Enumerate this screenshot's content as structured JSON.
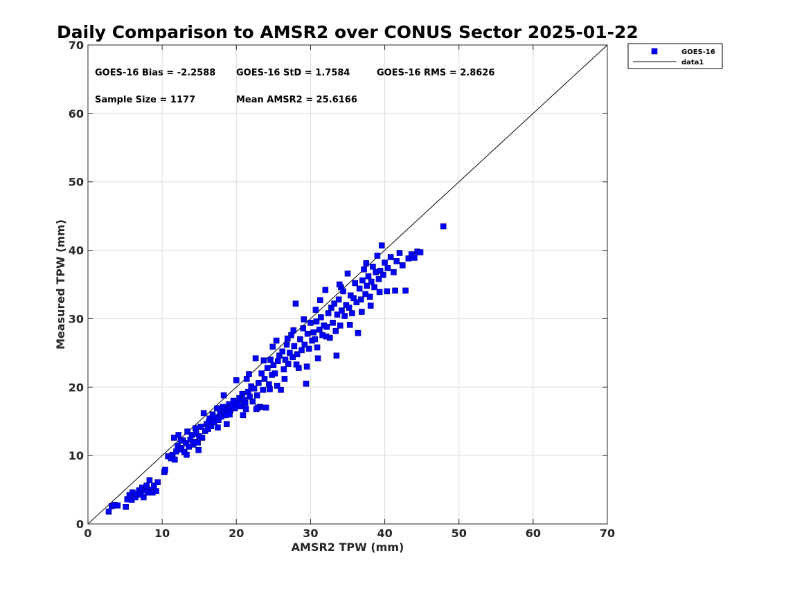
{
  "chart_data": {
    "type": "scatter",
    "title": "Daily Comparison to AMSR2 over CONUS Sector 2025-01-22",
    "xlabel": "AMSR2 TPW (mm)",
    "ylabel": "Measured TPW (mm)",
    "xlim": [
      0,
      70
    ],
    "ylim": [
      0,
      70
    ],
    "xticks": [
      "0",
      "10",
      "20",
      "30",
      "40",
      "50",
      "60",
      "70"
    ],
    "yticks": [
      "0",
      "10",
      "20",
      "30",
      "40",
      "50",
      "60",
      "70"
    ],
    "grid": true,
    "legend_position": "outside top-right",
    "stats": {
      "bias": "GOES-16 Bias = -2.2588",
      "std": "GOES-16 StD = 1.7584",
      "rms": "GOES-16 RMS = 2.8626",
      "sample_size": "Sample Size = 1177",
      "mean": "Mean AMSR2 = 25.6166"
    },
    "series": [
      {
        "name": "GOES-16",
        "marker": "square",
        "color": "#0000ff",
        "edge_color": "#000080",
        "points": [
          [
            2.8,
            1.8
          ],
          [
            3.2,
            2.6
          ],
          [
            3.6,
            2.8
          ],
          [
            4.0,
            2.7
          ],
          [
            5.1,
            2.5
          ],
          [
            5.3,
            3.6
          ],
          [
            5.6,
            4.2
          ],
          [
            5.9,
            3.5
          ],
          [
            6.0,
            4.6
          ],
          [
            6.4,
            3.9
          ],
          [
            6.6,
            4.4
          ],
          [
            6.9,
            4.9
          ],
          [
            7.1,
            4.3
          ],
          [
            7.3,
            5.3
          ],
          [
            7.5,
            3.9
          ],
          [
            7.7,
            4.9
          ],
          [
            7.9,
            5.6
          ],
          [
            8.1,
            4.6
          ],
          [
            8.3,
            6.4
          ],
          [
            8.5,
            5.0
          ],
          [
            8.7,
            4.6
          ],
          [
            8.9,
            5.6
          ],
          [
            9.2,
            4.8
          ],
          [
            9.4,
            6.1
          ],
          [
            10.3,
            7.6
          ],
          [
            10.4,
            7.9
          ],
          [
            10.8,
            9.9
          ],
          [
            11.2,
            9.6
          ],
          [
            11.4,
            10.1
          ],
          [
            11.6,
            12.6
          ],
          [
            11.7,
            9.4
          ],
          [
            11.9,
            10.6
          ],
          [
            12.1,
            11.4
          ],
          [
            12.2,
            13.0
          ],
          [
            12.4,
            11.1
          ],
          [
            12.6,
            10.9
          ],
          [
            12.8,
            12.2
          ],
          [
            13.0,
            10.5
          ],
          [
            13.2,
            11.8
          ],
          [
            13.4,
            13.5
          ],
          [
            13.6,
            11.3
          ],
          [
            13.8,
            12.3
          ],
          [
            14.0,
            13.0
          ],
          [
            14.2,
            11.6
          ],
          [
            14.4,
            12.0
          ],
          [
            14.6,
            13.2
          ],
          [
            14.8,
            11.9
          ],
          [
            15.0,
            12.8
          ],
          [
            15.2,
            14.2
          ],
          [
            15.4,
            12.6
          ],
          [
            15.6,
            16.2
          ],
          [
            15.8,
            13.6
          ],
          [
            16.0,
            14.6
          ],
          [
            16.2,
            13.9
          ],
          [
            16.4,
            15.4
          ],
          [
            16.6,
            14.3
          ],
          [
            16.8,
            16.0
          ],
          [
            17.0,
            14.9
          ],
          [
            17.2,
            15.6
          ],
          [
            17.4,
            16.9
          ],
          [
            17.6,
            15.2
          ],
          [
            17.8,
            16.2
          ],
          [
            18.0,
            15.7
          ],
          [
            18.2,
            17.1
          ],
          [
            18.4,
            16.3
          ],
          [
            18.6,
            15.9
          ],
          [
            18.8,
            16.8
          ],
          [
            19.0,
            17.5
          ],
          [
            19.2,
            16.6
          ],
          [
            19.4,
            17.2
          ],
          [
            19.6,
            18.0
          ],
          [
            19.8,
            16.9
          ],
          [
            20.0,
            21.0
          ],
          [
            20.2,
            17.6
          ],
          [
            20.4,
            18.4
          ],
          [
            20.6,
            17.2
          ],
          [
            20.8,
            19.0
          ],
          [
            21.0,
            18.1
          ],
          [
            21.2,
            17.7
          ],
          [
            21.4,
            21.2
          ],
          [
            21.6,
            19.3
          ],
          [
            21.8,
            18.6
          ],
          [
            22.0,
            20.1
          ],
          [
            22.2,
            17.9
          ],
          [
            22.4,
            19.8
          ],
          [
            22.6,
            24.2
          ],
          [
            22.8,
            18.8
          ],
          [
            23.0,
            20.6
          ],
          [
            23.2,
            17.1
          ],
          [
            23.4,
            22.0
          ],
          [
            23.6,
            19.6
          ],
          [
            23.8,
            21.2
          ],
          [
            24.0,
            17.0
          ],
          [
            24.2,
            22.8
          ],
          [
            24.4,
            20.4
          ],
          [
            24.6,
            24.0
          ],
          [
            24.8,
            21.8
          ],
          [
            25.0,
            23.2
          ],
          [
            25.2,
            22.0
          ],
          [
            25.4,
            26.8
          ],
          [
            25.6,
            23.8
          ],
          [
            25.8,
            24.6
          ],
          [
            26.0,
            19.6
          ],
          [
            26.2,
            25.2
          ],
          [
            26.4,
            22.6
          ],
          [
            26.6,
            24.0
          ],
          [
            26.8,
            26.2
          ],
          [
            27.0,
            23.4
          ],
          [
            27.2,
            25.0
          ],
          [
            27.4,
            27.6
          ],
          [
            27.6,
            24.4
          ],
          [
            27.8,
            26.0
          ],
          [
            28.0,
            32.2
          ],
          [
            28.2,
            24.8
          ],
          [
            28.4,
            22.8
          ],
          [
            28.6,
            27.0
          ],
          [
            28.8,
            25.4
          ],
          [
            29.0,
            28.6
          ],
          [
            29.2,
            26.2
          ],
          [
            29.4,
            20.5
          ],
          [
            29.6,
            27.8
          ],
          [
            29.8,
            25.6
          ],
          [
            30.0,
            29.4
          ],
          [
            30.2,
            26.8
          ],
          [
            30.4,
            28.0
          ],
          [
            30.6,
            27.0
          ],
          [
            30.8,
            29.6
          ],
          [
            31.0,
            24.2
          ],
          [
            31.2,
            28.4
          ],
          [
            31.4,
            30.2
          ],
          [
            31.6,
            27.6
          ],
          [
            31.8,
            29.0
          ],
          [
            32.0,
            34.2
          ],
          [
            32.2,
            28.8
          ],
          [
            32.4,
            30.8
          ],
          [
            32.6,
            27.2
          ],
          [
            32.8,
            31.6
          ],
          [
            33.0,
            29.4
          ],
          [
            33.2,
            32.2
          ],
          [
            33.4,
            28.2
          ],
          [
            33.6,
            30.6
          ],
          [
            33.8,
            32.8
          ],
          [
            34.0,
            29.0
          ],
          [
            34.2,
            31.2
          ],
          [
            34.4,
            34.0
          ],
          [
            34.6,
            30.4
          ],
          [
            34.8,
            32.0
          ],
          [
            35.0,
            36.6
          ],
          [
            35.2,
            31.6
          ],
          [
            35.4,
            33.4
          ],
          [
            35.6,
            30.8
          ],
          [
            35.8,
            33.0
          ],
          [
            36.0,
            35.2
          ],
          [
            36.2,
            32.4
          ],
          [
            36.4,
            27.9
          ],
          [
            36.6,
            34.4
          ],
          [
            36.8,
            32.8
          ],
          [
            37.0,
            35.6
          ],
          [
            37.2,
            37.2
          ],
          [
            37.4,
            33.6
          ],
          [
            37.6,
            34.8
          ],
          [
            37.8,
            36.2
          ],
          [
            38.0,
            33.2
          ],
          [
            38.2,
            35.4
          ],
          [
            38.4,
            37.6
          ],
          [
            38.6,
            34.6
          ],
          [
            38.8,
            36.8
          ],
          [
            39.0,
            39.2
          ],
          [
            39.2,
            35.8
          ],
          [
            39.4,
            37.0
          ],
          [
            39.6,
            40.7
          ],
          [
            39.8,
            36.4
          ],
          [
            40.0,
            38.2
          ],
          [
            40.4,
            37.4
          ],
          [
            40.8,
            39.0
          ],
          [
            41.2,
            36.8
          ],
          [
            41.6,
            38.4
          ],
          [
            42.0,
            39.6
          ],
          [
            42.4,
            37.8
          ],
          [
            42.8,
            34.1
          ],
          [
            43.2,
            38.8
          ],
          [
            43.6,
            39.4
          ],
          [
            44.0,
            38.9
          ],
          [
            44.4,
            39.8
          ],
          [
            44.8,
            39.7
          ],
          [
            47.9,
            43.5
          ],
          [
            16.3,
            14.9
          ],
          [
            17.5,
            14.1
          ],
          [
            19.1,
            16.0
          ],
          [
            21.3,
            16.8
          ],
          [
            22.9,
            17.0
          ],
          [
            24.5,
            19.7
          ],
          [
            25.5,
            20.2
          ],
          [
            26.5,
            21.2
          ],
          [
            28.1,
            23.3
          ],
          [
            29.5,
            23.0
          ],
          [
            30.9,
            25.8
          ],
          [
            32.1,
            27.4
          ],
          [
            33.5,
            24.6
          ],
          [
            35.3,
            29.1
          ],
          [
            36.9,
            31.0
          ],
          [
            38.1,
            31.9
          ],
          [
            39.3,
            33.9
          ],
          [
            40.3,
            34.0
          ],
          [
            41.4,
            34.1
          ],
          [
            13.3,
            10.1
          ],
          [
            14.9,
            10.8
          ],
          [
            18.7,
            14.6
          ],
          [
            20.9,
            15.9
          ],
          [
            22.7,
            16.8
          ],
          [
            12.5,
            12.2
          ],
          [
            14.5,
            14.0
          ],
          [
            18.3,
            18.8
          ],
          [
            23.7,
            23.9
          ],
          [
            26.9,
            27.1
          ],
          [
            30.7,
            31.3
          ],
          [
            34.1,
            34.6
          ],
          [
            37.5,
            38.1
          ],
          [
            27.7,
            28.3
          ],
          [
            31.3,
            32.7
          ],
          [
            24.9,
            25.9
          ],
          [
            21.7,
            21.9
          ],
          [
            29.1,
            29.9
          ],
          [
            33.9,
            35.0
          ]
        ]
      },
      {
        "name": "data1",
        "type": "line",
        "color": "#000000",
        "x": [
          0,
          70
        ],
        "y": [
          0,
          70
        ]
      }
    ]
  }
}
